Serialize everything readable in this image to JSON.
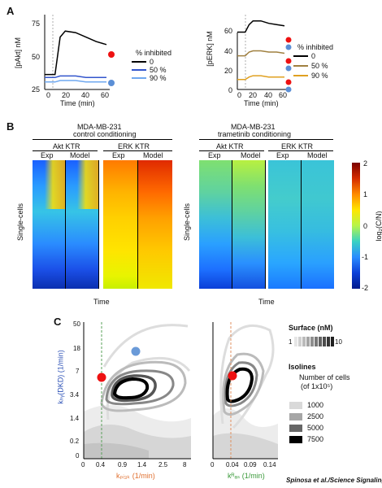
{
  "panels": {
    "a": "A",
    "b": "B",
    "c": "C"
  },
  "panel_a": {
    "left": {
      "ylabel": "[pAkt] nM",
      "xlabel": "Time (min)",
      "yticks": [
        "75",
        "50",
        "25"
      ],
      "xticks": [
        "0",
        "20",
        "40",
        "60"
      ],
      "legend_title": "% inhibited",
      "legend": [
        "0",
        "50 %",
        "90 %"
      ],
      "colors": [
        "#000000",
        "#3355cc",
        "#6fa8f0"
      ]
    },
    "right": {
      "ylabel": "[pERK] nM",
      "xlabel": "Time (min)",
      "yticks": [
        "60",
        "40",
        "20",
        "0"
      ],
      "xticks": [
        "0",
        "20",
        "40",
        "60"
      ],
      "legend_title": "% inhibited",
      "legend": [
        "0",
        "50 %",
        "90 %"
      ],
      "colors": [
        "#000000",
        "#a08040",
        "#e0a020"
      ]
    },
    "chart_data": [
      {
        "type": "line",
        "ylabel": "[pAkt] nM",
        "xlabel": "Time (min)",
        "ylim": [
          25,
          75
        ],
        "xlim": [
          0,
          60
        ],
        "x": [
          0,
          10,
          15,
          20,
          30,
          40,
          50,
          60
        ],
        "series": [
          {
            "name": "0",
            "values": [
              35,
              35,
              60,
              64,
              63,
              60,
              57,
              55
            ]
          },
          {
            "name": "50 %",
            "values": [
              33,
              33,
              34,
              34,
              34,
              33,
              33,
              33
            ]
          },
          {
            "name": "90 %",
            "values": [
              30,
              30,
              31,
              31,
              31,
              30,
              30,
              30
            ]
          }
        ]
      },
      {
        "type": "line",
        "ylabel": "[pERK] nM",
        "xlabel": "Time (min)",
        "ylim": [
          0,
          60
        ],
        "xlim": [
          0,
          60
        ],
        "x": [
          0,
          10,
          15,
          20,
          30,
          40,
          50,
          60
        ],
        "series": [
          {
            "name": "0",
            "values": [
              46,
              46,
              52,
              55,
              55,
              53,
              52,
              51
            ]
          },
          {
            "name": "50 %",
            "values": [
              27,
              27,
              30,
              31,
              31,
              30,
              30,
              29
            ]
          },
          {
            "name": "90 %",
            "values": [
              8,
              8,
              10,
              11,
              11,
              10,
              10,
              10
            ]
          }
        ]
      }
    ]
  },
  "panel_b": {
    "left": {
      "cell": "MDA-MB-231",
      "cond": "control conditioning",
      "akt": "Akt KTR",
      "erk": "ERK KTR",
      "exp": "Exp",
      "model": "Model"
    },
    "right": {
      "cell": "MDA-MB-231",
      "cond": "trametinib conditioning",
      "akt": "Akt KTR",
      "erk": "ERK KTR",
      "exp": "Exp",
      "model": "Model"
    },
    "ylabel": "Single-cells",
    "xlabel": "Time",
    "colorbar_label": "log₂(C/N)",
    "colorbar_ticks": [
      "2",
      "1",
      "0",
      "-1",
      "-2"
    ]
  },
  "panel_c": {
    "ylabel": "kₕᵧ(DKD) (1/min)",
    "xlabel_left": "kₚᵢ₃ₖ (1/min)",
    "xlabel_right": "kᴿₐₛ (1/min)",
    "yticks": [
      "50",
      "18",
      "7",
      "3.4",
      "1.4",
      "0.2",
      "0"
    ],
    "xticks_left": [
      "0",
      "0.4",
      "0.9",
      "1.4",
      "2.5",
      "8"
    ],
    "xticks_right": [
      "0",
      "0.04",
      "0.09",
      "0.14"
    ],
    "surface_title": "Surface (nM)",
    "surface_min": "1",
    "surface_max": "10",
    "isolines_title": "Isolines",
    "isolines_sub1": "Number of cells",
    "isolines_sub2": "(of 1x10⁵)",
    "isolines": [
      "1000",
      "2500",
      "5000",
      "7500"
    ],
    "isoline_colors": [
      "#d9d9d9",
      "#a6a6a6",
      "#666666",
      "#000000"
    ]
  },
  "credit": "Spinosa et al./Science Signaling"
}
